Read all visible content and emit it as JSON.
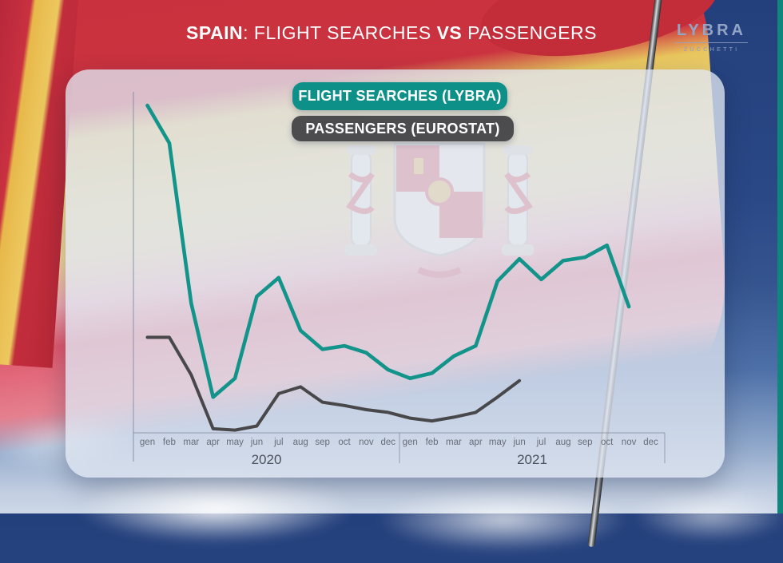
{
  "header": {
    "title_part_country": "SPAIN",
    "title_part_sep": ": FLIGHT SEARCHES ",
    "title_part_vs": "VS",
    "title_part_rest": " PASSENGERS"
  },
  "logo": {
    "brand": "LYBRA",
    "sub": "ZUCCHETTI"
  },
  "legend": {
    "searches_label": "FLIGHT SEARCHES (LYBRA)",
    "passengers_label": "PASSENGERS (EUROSTAT)"
  },
  "colors": {
    "searches_accent": "#0d9087",
    "passengers_accent": "#4c4c4e",
    "edge_strip": "#0f877c",
    "axis_line": "rgba(125,135,155,0.6)",
    "month_label": "#686d78",
    "year_label": "#4b505a"
  },
  "chart_data": {
    "type": "line",
    "title": "SPAIN: FLIGHT SEARCHES VS PASSENGERS",
    "xlabel": "",
    "ylabel": "",
    "y_axis_ticks_visible": false,
    "grid": false,
    "legend_position": "top-center",
    "ylim": [
      0,
      100
    ],
    "value_note": "normalized index 0-100 read from pixel heights; no numeric axis shown in source",
    "categories": [
      "gen",
      "feb",
      "mar",
      "apr",
      "may",
      "jun",
      "jul",
      "aug",
      "sep",
      "oct",
      "nov",
      "dec",
      "gen",
      "feb",
      "mar",
      "apr",
      "may",
      "jun",
      "jul",
      "aug",
      "sep",
      "oct",
      "nov",
      "dec"
    ],
    "year_groups": [
      {
        "label": "2020",
        "months": 12
      },
      {
        "label": "2021",
        "months": 12
      }
    ],
    "series": [
      {
        "name": "FLIGHT SEARCHES (LYBRA)",
        "color": "#12948a",
        "values": [
          96,
          85,
          38,
          10.5,
          16,
          40,
          45.5,
          30,
          24.5,
          25.5,
          23.5,
          18.5,
          16,
          17.5,
          22.5,
          25.5,
          44.5,
          51,
          45,
          50.5,
          51.5,
          55,
          37,
          null
        ]
      },
      {
        "name": "PASSENGERS (EUROSTAT)",
        "color": "#48484a",
        "values": [
          28,
          28,
          17,
          1.2,
          0.8,
          2,
          11.5,
          13.5,
          9,
          8,
          6.8,
          6,
          4.3,
          3.5,
          4.6,
          6,
          10.5,
          15.3,
          null,
          null,
          null,
          null,
          null,
          null
        ]
      }
    ]
  }
}
